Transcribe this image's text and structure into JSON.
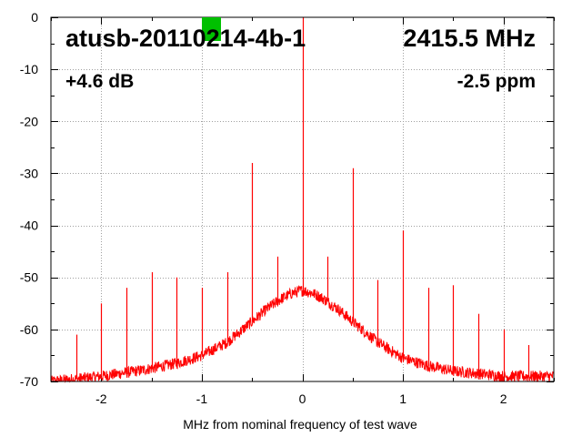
{
  "chart_data": {
    "type": "line",
    "title": "atusb-20110214-4b-1",
    "frequency_label": "2415.5 MHz",
    "power_label": "+4.6 dB",
    "ppm_label": "-2.5 ppm",
    "xlabel": "MHz from nominal frequency of test wave",
    "ylabel": "",
    "xlim": [
      -2.5,
      2.5
    ],
    "ylim": [
      -70,
      0
    ],
    "x_ticks": [
      -2,
      -1,
      0,
      1,
      2
    ],
    "x_tick_labels": [
      "-2",
      "-1",
      "0",
      "1",
      "2"
    ],
    "y_ticks": [
      0,
      -10,
      -20,
      -30,
      -40,
      -50,
      -60,
      -70
    ],
    "y_tick_labels": [
      "0",
      "-10",
      "-20",
      "-30",
      "-40",
      "-50",
      "-60",
      "-70"
    ],
    "grid": true,
    "series": [
      {
        "color": "#ff0000",
        "noise_floor": {
          "x": [
            -2.5,
            -2.25,
            -2.0,
            -1.75,
            -1.5,
            -1.25,
            -1.0,
            -0.75,
            -0.5,
            -0.35,
            -0.2,
            -0.1,
            0.0,
            0.1,
            0.2,
            0.35,
            0.5,
            0.75,
            1.0,
            1.25,
            1.5,
            1.75,
            2.0,
            2.25,
            2.5
          ],
          "y": [
            -70,
            -69.5,
            -69,
            -68.3,
            -67.5,
            -66.5,
            -65,
            -62.5,
            -58.5,
            -56,
            -54,
            -53,
            -52.5,
            -53,
            -54,
            -56,
            -58.5,
            -62.5,
            -65.5,
            -67,
            -68,
            -68.5,
            -69,
            -69,
            -69
          ]
        },
        "spurs": [
          {
            "x": -2.25,
            "y": -61
          },
          {
            "x": -2.0,
            "y": -55
          },
          {
            "x": -1.75,
            "y": -52
          },
          {
            "x": -1.5,
            "y": -49
          },
          {
            "x": -1.25,
            "y": -50
          },
          {
            "x": -1.0,
            "y": -52
          },
          {
            "x": -0.75,
            "y": -49
          },
          {
            "x": -0.5,
            "y": -28
          },
          {
            "x": -0.25,
            "y": -46
          },
          {
            "x": 0.0,
            "y": 0
          },
          {
            "x": 0.25,
            "y": -46
          },
          {
            "x": 0.5,
            "y": -29
          },
          {
            "x": 0.75,
            "y": -50.5
          },
          {
            "x": 1.0,
            "y": -41
          },
          {
            "x": 1.25,
            "y": -52
          },
          {
            "x": 1.5,
            "y": -51.5
          },
          {
            "x": 1.75,
            "y": -57
          },
          {
            "x": 2.0,
            "y": -60
          },
          {
            "x": 2.25,
            "y": -63
          }
        ]
      }
    ],
    "marker_color": "#00c000"
  }
}
